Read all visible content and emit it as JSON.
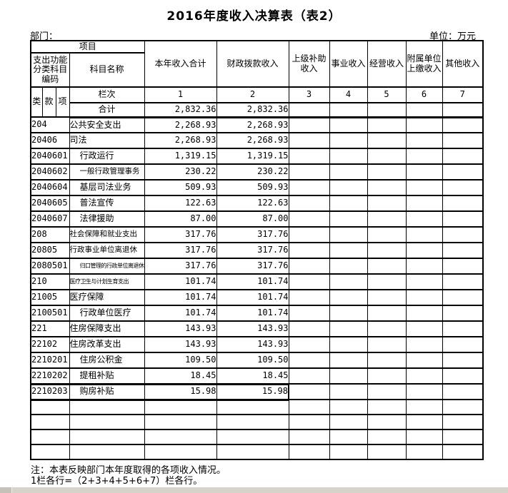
{
  "title": "2016年度收入决算表（表2）",
  "meta": {
    "department_label": "部门：",
    "unit_label": "单位：万元"
  },
  "table": {
    "header": {
      "project": "项目",
      "code_group": "支出功能分类科目编码",
      "subject_name": "科目名称",
      "code_sub": [
        "类",
        "款",
        "项"
      ],
      "columns": [
        "本年收入合计",
        "财政拨款收入",
        "上级补助收入",
        "事业收入",
        "经营收入",
        "附属单位上缴收入",
        "其他收入"
      ],
      "lanci_label": "栏次",
      "lanci_numbers": [
        "1",
        "2",
        "3",
        "4",
        "5",
        "6",
        "7"
      ],
      "total_label": "合计",
      "total_values": [
        "2,832.36",
        "2,832.36",
        "",
        "",
        "",
        "",
        ""
      ]
    },
    "rows": [
      {
        "code": "204",
        "name": "公共安全支出",
        "size": "normal",
        "indent": false,
        "selected": false,
        "values": [
          "2,268.93",
          "2,268.93",
          "",
          "",
          "",
          "",
          ""
        ]
      },
      {
        "code": "20406",
        "name": "司法",
        "size": "normal",
        "indent": false,
        "selected": false,
        "values": [
          "2,268.93",
          "2,268.93",
          "",
          "",
          "",
          "",
          ""
        ]
      },
      {
        "code": "2040601",
        "name": "行政运行",
        "size": "normal",
        "indent": true,
        "selected": false,
        "values": [
          "1,319.15",
          "1,319.15",
          "",
          "",
          "",
          "",
          ""
        ]
      },
      {
        "code": "2040602",
        "name": "一般行政管理事务",
        "size": "small",
        "indent": true,
        "selected": false,
        "values": [
          "230.22",
          "230.22",
          "",
          "",
          "",
          "",
          ""
        ]
      },
      {
        "code": "2040604",
        "name": "基层司法业务",
        "size": "normal",
        "indent": true,
        "selected": false,
        "values": [
          "509.93",
          "509.93",
          "",
          "",
          "",
          "",
          ""
        ]
      },
      {
        "code": "2040605",
        "name": "普法宣传",
        "size": "normal",
        "indent": true,
        "selected": false,
        "values": [
          "122.63",
          "122.63",
          "",
          "",
          "",
          "",
          ""
        ]
      },
      {
        "code": "2040607",
        "name": "法律援助",
        "size": "normal",
        "indent": true,
        "selected": false,
        "values": [
          "87.00",
          "87.00",
          "",
          "",
          "",
          "",
          ""
        ]
      },
      {
        "code": "208",
        "name": "社会保障和就业支出",
        "size": "small",
        "indent": false,
        "selected": false,
        "values": [
          "317.76",
          "317.76",
          "",
          "",
          "",
          "",
          ""
        ]
      },
      {
        "code": "20805",
        "name": "行政事业单位离退休",
        "size": "small",
        "indent": false,
        "selected": false,
        "values": [
          "317.76",
          "317.76",
          "",
          "",
          "",
          "",
          ""
        ]
      },
      {
        "code": "2080501",
        "name": "归口管理的行政单位离退休",
        "size": "tiny",
        "indent": true,
        "selected": false,
        "values": [
          "317.76",
          "317.76",
          "",
          "",
          "",
          "",
          ""
        ]
      },
      {
        "code": "210",
        "name": "医疗卫生与计划生育支出",
        "size": "tiny",
        "indent": false,
        "selected": false,
        "values": [
          "101.74",
          "101.74",
          "",
          "",
          "",
          "",
          ""
        ]
      },
      {
        "code": "21005",
        "name": "医疗保障",
        "size": "normal",
        "indent": false,
        "selected": false,
        "values": [
          "101.74",
          "101.74",
          "",
          "",
          "",
          "",
          ""
        ]
      },
      {
        "code": "2100501",
        "name": "行政单位医疗",
        "size": "normal",
        "indent": true,
        "selected": false,
        "values": [
          "101.74",
          "101.74",
          "",
          "",
          "",
          "",
          ""
        ]
      },
      {
        "code": "221",
        "name": "住房保障支出",
        "size": "normal",
        "indent": false,
        "selected": false,
        "values": [
          "143.93",
          "143.93",
          "",
          "",
          "",
          "",
          ""
        ]
      },
      {
        "code": "22102",
        "name": "住房改革支出",
        "size": "normal",
        "indent": false,
        "selected": false,
        "values": [
          "143.93",
          "143.93",
          "",
          "",
          "",
          "",
          ""
        ]
      },
      {
        "code": "2210201",
        "name": "住房公积金",
        "size": "normal",
        "indent": true,
        "selected": false,
        "values": [
          "109.50",
          "109.50",
          "",
          "",
          "",
          "",
          ""
        ]
      },
      {
        "code": "2210202",
        "name": "提租补贴",
        "size": "normal",
        "indent": true,
        "selected": false,
        "values": [
          "18.45",
          "18.45",
          "",
          "",
          "",
          "",
          ""
        ]
      },
      {
        "code": "2210203",
        "name": "购房补贴",
        "size": "normal",
        "indent": true,
        "selected": true,
        "values": [
          "15.98",
          "15.98",
          "",
          "",
          "",
          "",
          ""
        ]
      }
    ],
    "empty_row_count": 4
  },
  "notes": [
    "注：本表反映部门本年度取得的各项收入情况。",
    "1栏各行=（2+3+4+5+6+7）栏各行。"
  ]
}
